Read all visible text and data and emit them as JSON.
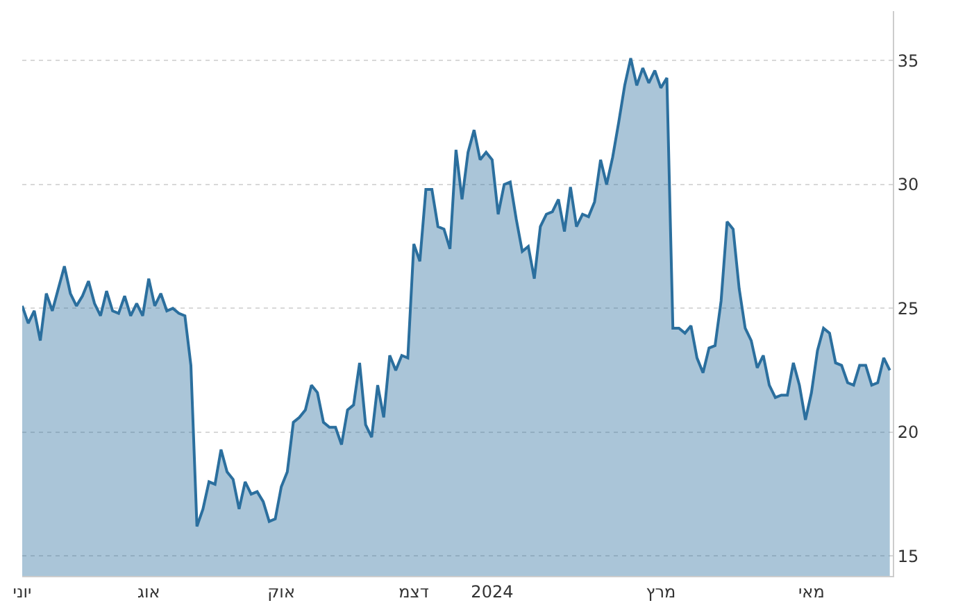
{
  "chart_data": {
    "type": "area",
    "categories": [
      "יוני",
      null,
      null,
      null,
      null,
      null,
      null,
      null,
      null,
      null,
      null,
      null,
      null,
      null,
      null,
      null,
      null,
      null,
      null,
      null,
      null,
      "אוג",
      null,
      null,
      null,
      null,
      null,
      null,
      null,
      null,
      null,
      null,
      null,
      null,
      null,
      null,
      null,
      null,
      null,
      null,
      null,
      null,
      null,
      "אוק",
      null,
      null,
      null,
      null,
      null,
      null,
      null,
      null,
      null,
      null,
      null,
      null,
      null,
      null,
      null,
      null,
      null,
      null,
      null,
      null,
      null,
      "דצמ",
      null,
      null,
      null,
      null,
      null,
      null,
      null,
      null,
      null,
      null,
      null,
      null,
      "2024",
      null,
      null,
      null,
      null,
      null,
      null,
      null,
      null,
      null,
      null,
      null,
      null,
      null,
      null,
      null,
      null,
      null,
      null,
      null,
      null,
      null,
      null,
      null,
      null,
      null,
      null,
      null,
      "מרץ",
      null,
      null,
      null,
      null,
      null,
      null,
      null,
      null,
      null,
      null,
      null,
      null,
      null,
      null,
      null,
      null,
      null,
      null,
      null,
      null,
      null,
      null,
      null,
      null,
      "מאי",
      null,
      null,
      null,
      null,
      null,
      null,
      null,
      null,
      null,
      null,
      null,
      null,
      null
    ],
    "series": [
      {
        "color": "#2b6f9e",
        "values": [
          25.1,
          24.4,
          24.9,
          23.7,
          25.6,
          24.9,
          25.8,
          26.7,
          25.6,
          25.1,
          25.5,
          26.1,
          25.2,
          24.7,
          25.7,
          24.9,
          24.8,
          25.5,
          24.7,
          25.2,
          24.7,
          26.2,
          25.1,
          25.6,
          24.9,
          25.0,
          24.8,
          24.7,
          22.7,
          16.2,
          16.9,
          18.0,
          17.9,
          19.3,
          18.4,
          18.1,
          16.9,
          18.0,
          17.5,
          17.6,
          17.2,
          16.4,
          16.5,
          17.8,
          18.4,
          20.4,
          20.6,
          20.9,
          21.9,
          21.6,
          20.4,
          20.2,
          20.2,
          19.5,
          20.9,
          21.1,
          22.8,
          20.3,
          19.8,
          21.9,
          20.6,
          23.1,
          22.5,
          23.1,
          23.0,
          27.6,
          26.9,
          29.8,
          29.8,
          28.3,
          28.2,
          27.4,
          31.4,
          29.4,
          31.3,
          32.2,
          31.0,
          31.3,
          31.0,
          28.8,
          30.0,
          30.1,
          28.6,
          27.3,
          27.5,
          26.2,
          28.3,
          28.8,
          28.9,
          29.4,
          28.1,
          29.9,
          28.3,
          28.8,
          28.7,
          29.3,
          31.0,
          30.0,
          31.1,
          32.5,
          34.0,
          35.1,
          34.0,
          34.7,
          34.1,
          34.6,
          33.9,
          34.3,
          24.2,
          24.2,
          24.0,
          24.3,
          23.0,
          22.4,
          23.4,
          23.5,
          25.3,
          28.5,
          28.2,
          25.8,
          24.2,
          23.7,
          22.6,
          23.1,
          21.9,
          21.4,
          21.5,
          21.5,
          22.8,
          21.9,
          20.5,
          21.6,
          23.3,
          24.2,
          24.0,
          22.8,
          22.7,
          22.0,
          21.9,
          22.7,
          22.7,
          21.9,
          22.0,
          23.0,
          22.5
        ]
      }
    ],
    "ylim": [
      14.2,
      37.0
    ],
    "yticks": [
      15,
      20,
      25,
      30,
      35
    ],
    "grid": "y"
  }
}
